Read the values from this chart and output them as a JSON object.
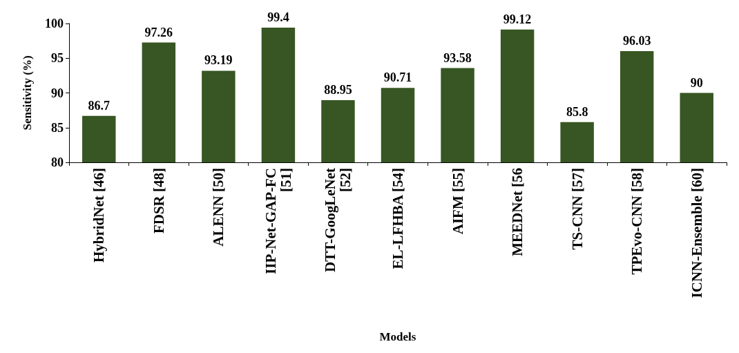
{
  "chart_data": {
    "type": "bar",
    "xlabel": "Models",
    "ylabel": "Sensitivity (%)",
    "categories": [
      "HybridNet [46]",
      "FDSR [48]",
      "ALENN [50]",
      "IIP-Net-GAP-FC\n[51]",
      "DTT-GoogLeNet\n[52]",
      "EL-LFHBA [54]",
      "AIFM [55]",
      "MEEDNet [56",
      "TS-CNN [57]",
      "TPEvo-CNN [58]",
      "ICNN-Ensemble [60]"
    ],
    "values": [
      86.7,
      97.26,
      93.19,
      99.4,
      88.95,
      90.71,
      93.58,
      99.12,
      85.8,
      96.03,
      90
    ],
    "color": "#375623",
    "ylim": [
      80,
      100
    ],
    "yticks": [
      80,
      85,
      90,
      95,
      100
    ],
    "grid": false,
    "data_labels": true
  }
}
